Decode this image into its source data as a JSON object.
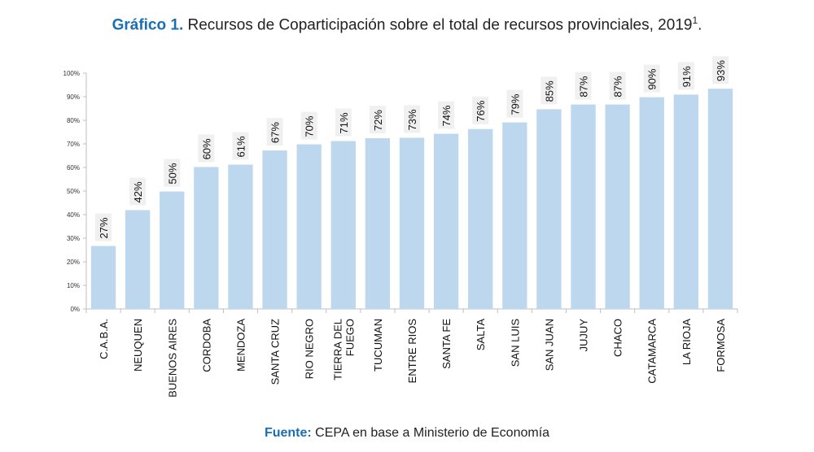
{
  "title": {
    "lead": "Gráfico 1.",
    "text": " Recursos de Coparticipación sobre el total de recursos provinciales, 2019",
    "sup": "1",
    "end": "."
  },
  "source": {
    "lead": "Fuente:",
    "text": " CEPA en base a Ministerio de Economía"
  },
  "colors": {
    "bar": "#bdd7ee",
    "label_bg": "#f0f0f0",
    "accent": "#1a6fb3",
    "axis": "#bfbfbf"
  },
  "chart_data": {
    "type": "bar",
    "title": "Recursos de Coparticipación sobre el total de recursos provinciales, 2019",
    "xlabel": "",
    "ylabel": "",
    "ylim": [
      0,
      100
    ],
    "yticks": [
      "0%",
      "10%",
      "20%",
      "30%",
      "40%",
      "50%",
      "60%",
      "70%",
      "80%",
      "90%",
      "100%"
    ],
    "grid": false,
    "categories": [
      [
        "C.A.B.A."
      ],
      [
        "NEUQUEN"
      ],
      [
        "BUENOS AIRES"
      ],
      [
        "CORDOBA"
      ],
      [
        "MENDOZA"
      ],
      [
        "SANTA CRUZ"
      ],
      [
        "RIO NEGRO"
      ],
      [
        "TIERRA DEL",
        "FUEGO"
      ],
      [
        "TUCUMAN"
      ],
      [
        "ENTRE RIOS"
      ],
      [
        "SANTA FE"
      ],
      [
        "SALTA"
      ],
      [
        "SAN LUIS"
      ],
      [
        "SAN JUAN"
      ],
      [
        "JUJUY"
      ],
      [
        "CHACO"
      ],
      [
        "CATAMARCA"
      ],
      [
        "LA RIOJA"
      ],
      [
        "FORMOSA"
      ]
    ],
    "values": [
      26.7,
      41.9,
      49.8,
      60.2,
      61.2,
      67.2,
      69.8,
      71.2,
      72.4,
      72.6,
      74.3,
      76.3,
      79.1,
      84.7,
      86.7,
      86.7,
      89.8,
      90.9,
      93.4
    ],
    "data_labels": [
      "27%",
      "42%",
      "50%",
      "60%",
      "61%",
      "67%",
      "70%",
      "71%",
      "72%",
      "73%",
      "74%",
      "76%",
      "79%",
      "85%",
      "87%",
      "87%",
      "90%",
      "91%",
      "93%"
    ]
  }
}
